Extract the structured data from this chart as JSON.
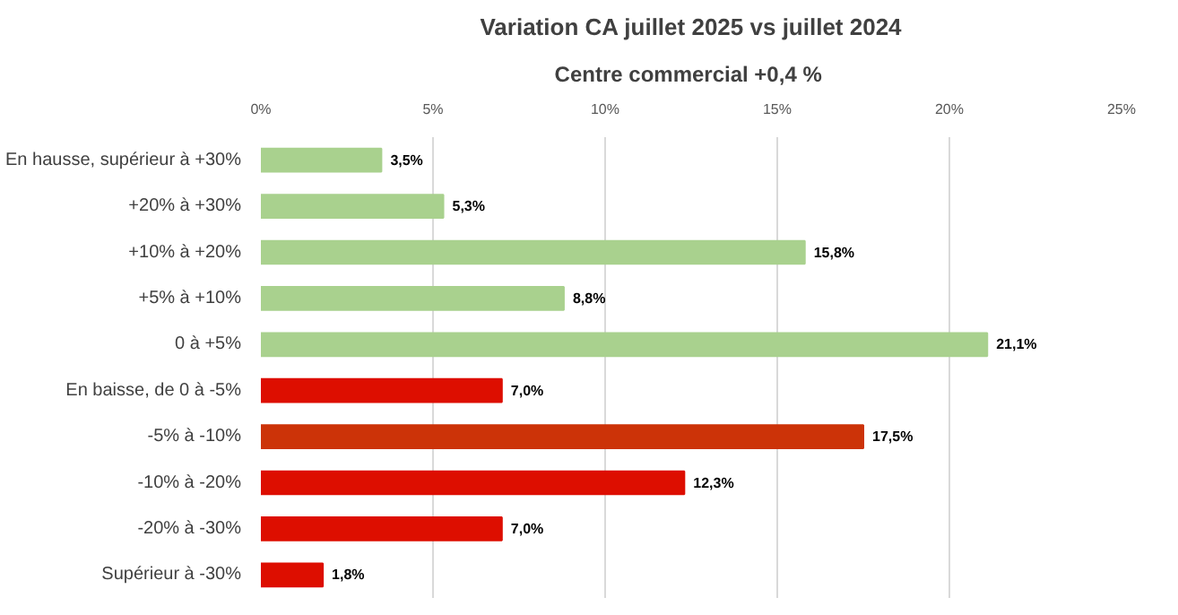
{
  "chart_data": {
    "type": "bar",
    "orientation": "horizontal",
    "title": "Variation CA juillet 2025 vs juillet 2024",
    "subtitle": "Centre commercial  +0,4 %",
    "categories": [
      "En hausse, supérieur à +30%",
      "+20% à +30%",
      "+10% à +20%",
      "+5% à +10%",
      "0 à +5%",
      "En baisse, de 0 à -5%",
      "-5% à -10%",
      "-10% à -20%",
      "-20% à -30%",
      "Supérieur à -30%"
    ],
    "values": [
      3.5,
      5.3,
      15.8,
      8.8,
      21.1,
      7.0,
      17.5,
      12.3,
      7.0,
      1.8
    ],
    "value_labels": [
      "3,5%",
      "5,3%",
      "15,8%",
      "8,8%",
      "21,1%",
      "7,0%",
      "17,5%",
      "12,3%",
      "7,0%",
      "1,8%"
    ],
    "colors": [
      "#a9d18e",
      "#a9d18e",
      "#a9d18e",
      "#a9d18e",
      "#a9d18e",
      "#dd0e00",
      "#cc3308",
      "#dd0e00",
      "#dd0e00",
      "#dd0e00"
    ],
    "xlim": [
      0,
      25
    ],
    "xticks": [
      {
        "value": 0,
        "label": "0%"
      },
      {
        "value": 5,
        "label": "5%"
      },
      {
        "value": 10,
        "label": "10%"
      },
      {
        "value": 15,
        "label": "15%"
      },
      {
        "value": 20,
        "label": "20%"
      },
      {
        "value": 25,
        "label": "25%"
      }
    ],
    "grid": "x"
  }
}
